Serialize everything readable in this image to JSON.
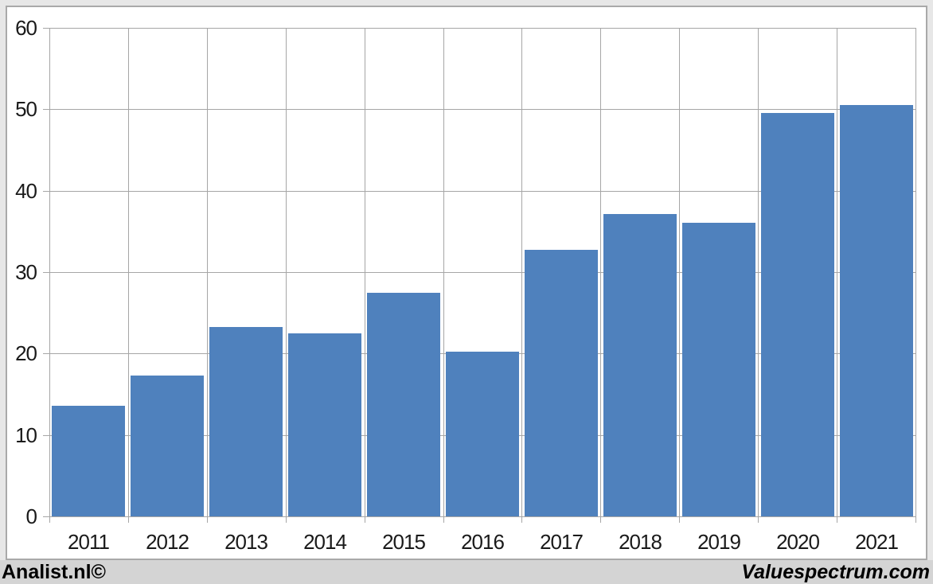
{
  "chart_data": {
    "type": "bar",
    "categories": [
      "2011",
      "2012",
      "2013",
      "2014",
      "2015",
      "2016",
      "2017",
      "2018",
      "2019",
      "2020",
      "2021"
    ],
    "values": [
      13.6,
      17.3,
      23.3,
      22.5,
      27.5,
      20.2,
      32.7,
      37.1,
      36.1,
      49.5,
      50.5
    ],
    "title": "",
    "xlabel": "",
    "ylabel": "",
    "ylim": [
      0,
      60
    ],
    "yticks": [
      0,
      10,
      20,
      30,
      40,
      50,
      60
    ],
    "grid": true,
    "legend": "none",
    "bar_color": "#4f81bd",
    "gridline_color": "#a6a6a6",
    "plot_background": "#ffffff",
    "axis_label_color": "#1a1a1a"
  },
  "footer": {
    "left": "Analist.nl©",
    "right": "Valuespectrum.com"
  },
  "colors": {
    "outer_background": "#e7e7e7",
    "footer_strip": "#d4d4d4",
    "chart_border": "#a9a9a9"
  }
}
